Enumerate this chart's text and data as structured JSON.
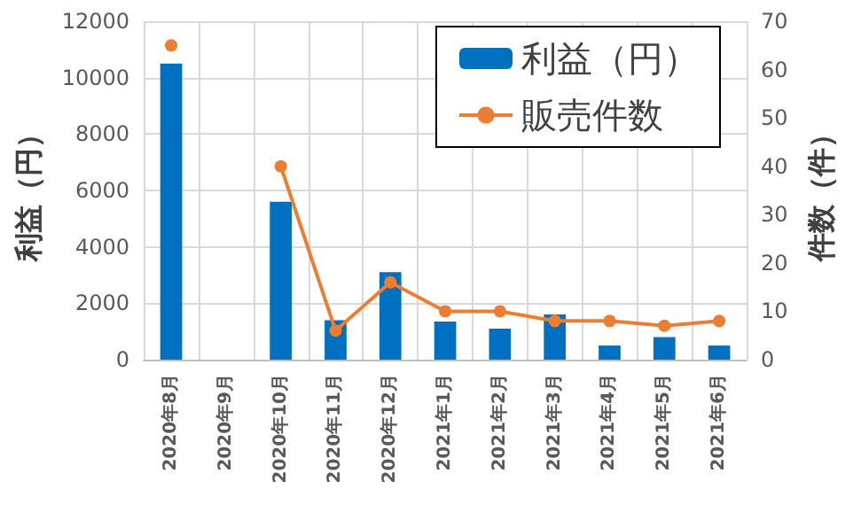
{
  "chart_data": {
    "type": "bar",
    "ylabel": "利益（円）",
    "y2label": "件数（件）",
    "categories": [
      "2020年8月",
      "2020年9月",
      "2020年10月",
      "2020年11月",
      "2020年12月",
      "2021年1月",
      "2021年2月",
      "2021年3月",
      "2021年4月",
      "2021年5月",
      "2021年6月"
    ],
    "series": [
      {
        "name": "利益（円）",
        "color": "#0070c0",
        "values": [
          10500,
          null,
          5600,
          1400,
          3100,
          1350,
          1100,
          1600,
          500,
          800,
          500
        ]
      },
      {
        "name": "販売件数",
        "type": "line",
        "axis": "y2",
        "color": "#ed7d31",
        "values": [
          65,
          null,
          40,
          6,
          16,
          10,
          10,
          8,
          8,
          7,
          8
        ]
      }
    ],
    "ylim": [
      0,
      12000
    ],
    "yticks": [
      0,
      2000,
      4000,
      6000,
      8000,
      10000,
      12000
    ],
    "y2lim": [
      0,
      70
    ],
    "y2ticks": [
      0,
      10,
      20,
      30,
      40,
      50,
      60,
      70
    ],
    "grid": true,
    "legend": "top right",
    "marker": "circle"
  }
}
